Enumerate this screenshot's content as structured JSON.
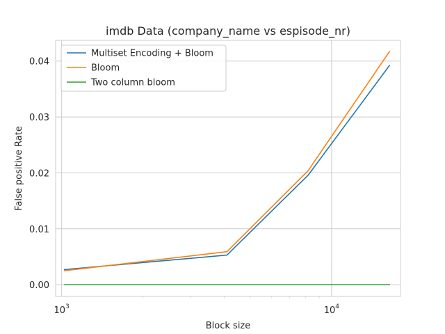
{
  "chart_data": {
    "type": "line",
    "title": "imdb Data (company_name vs espisode_nr)",
    "xlabel": "Block size",
    "ylabel": "False positive Rate",
    "xscale": "log",
    "x": [
      1024,
      4096,
      8192,
      16384
    ],
    "xlim": [
      950,
      18000
    ],
    "ylim": [
      -0.0021,
      0.0437
    ],
    "xticks": [
      {
        "value": 1000,
        "base": "10",
        "exp": "3"
      },
      {
        "value": 10000,
        "base": "10",
        "exp": "4"
      }
    ],
    "yticks": [
      {
        "value": 0.0,
        "label": "0.00"
      },
      {
        "value": 0.01,
        "label": "0.01"
      },
      {
        "value": 0.02,
        "label": "0.02"
      },
      {
        "value": 0.03,
        "label": "0.03"
      },
      {
        "value": 0.04,
        "label": "0.04"
      }
    ],
    "grid": true,
    "legend_position": "top-left",
    "series": [
      {
        "name": "Multiset Encoding + Bloom",
        "color": "#1f77b4",
        "values": [
          0.0027,
          0.0053,
          0.0196,
          0.0392
        ]
      },
      {
        "name": "Bloom",
        "color": "#ff7f0e",
        "values": [
          0.0025,
          0.0059,
          0.0204,
          0.0417
        ]
      },
      {
        "name": "Two column bloom",
        "color": "#2ca02c",
        "values": [
          0.0,
          0.0,
          0.0,
          0.0
        ]
      }
    ]
  }
}
